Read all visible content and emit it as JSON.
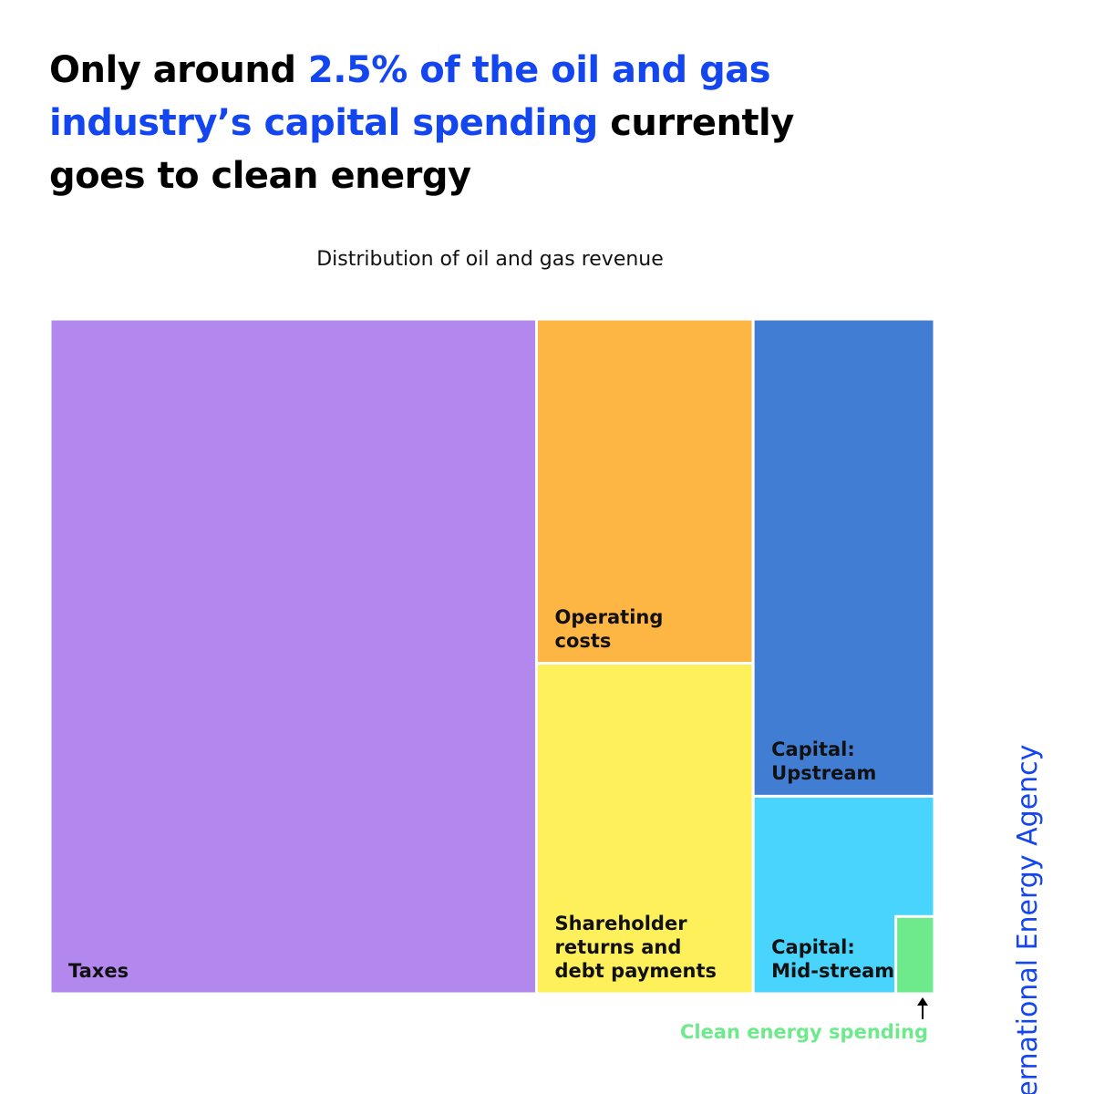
{
  "header": {
    "title_parts": [
      "Only around ",
      "2.5% of the oil and gas industry’s capital spending",
      " currently goes to clean energy"
    ]
  },
  "chart_data": {
    "type": "treemap",
    "title": "Distribution of oil and gas revenue",
    "categories": [
      "Taxes",
      "Operating costs",
      "Shareholder returns and debt payments",
      "Capital: Upstream",
      "Capital: Mid-stream",
      "Clean energy spending"
    ],
    "values": [
      55,
      12.5,
      12,
      14.5,
      5.5,
      0.5
    ],
    "colors": [
      "#b288ee",
      "#fdb544",
      "#fdf05a",
      "#417ed3",
      "#48d4fd",
      "#6ee98c"
    ]
  },
  "source": "International Energy Agency"
}
